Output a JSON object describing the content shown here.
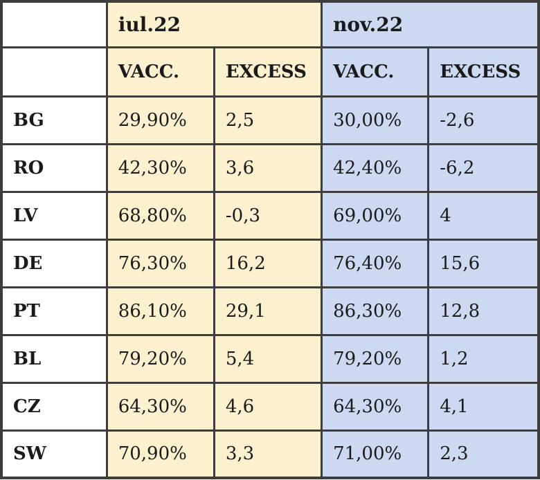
{
  "colors": {
    "jul_section_bg": "#fbf1cf",
    "nov_section_bg": "#ccd9f1",
    "border": "#3d3d3d"
  },
  "header": {
    "corner": "",
    "jul_label": "iul.22",
    "nov_label": "nov.22",
    "sub": {
      "jul_vacc": "VACC.",
      "jul_excess": "EXCESS",
      "nov_vacc": "VACC.",
      "nov_excess": "EXCESS"
    }
  },
  "rows": [
    {
      "label": "BG",
      "jul_vacc": "29,90%",
      "jul_excess": "2,5",
      "nov_vacc": "30,00%",
      "nov_excess": "-2,6"
    },
    {
      "label": "RO",
      "jul_vacc": "42,30%",
      "jul_excess": "3,6",
      "nov_vacc": "42,40%",
      "nov_excess": "-6,2"
    },
    {
      "label": "LV",
      "jul_vacc": "68,80%",
      "jul_excess": "-0,3",
      "nov_vacc": "69,00%",
      "nov_excess": "4"
    },
    {
      "label": "DE",
      "jul_vacc": "76,30%",
      "jul_excess": "16,2",
      "nov_vacc": "76,40%",
      "nov_excess": "15,6"
    },
    {
      "label": "PT",
      "jul_vacc": "86,10%",
      "jul_excess": "29,1",
      "nov_vacc": "86,30%",
      "nov_excess": "12,8"
    },
    {
      "label": "BL",
      "jul_vacc": "79,20%",
      "jul_excess": "5,4",
      "nov_vacc": "79,20%",
      "nov_excess": "1,2"
    },
    {
      "label": "CZ",
      "jul_vacc": "64,30%",
      "jul_excess": "4,6",
      "nov_vacc": "64,30%",
      "nov_excess": "4,1"
    },
    {
      "label": "SW",
      "jul_vacc": "70,90%",
      "jul_excess": "3,3",
      "nov_vacc": "71,00%",
      "nov_excess": "2,3"
    }
  ],
  "chart_data": {
    "type": "table",
    "title": "",
    "column_groups": [
      "",
      "iul.22",
      "iul.22",
      "nov.22",
      "nov.22"
    ],
    "columns": [
      "",
      "VACC.",
      "EXCESS",
      "VACC.",
      "EXCESS"
    ],
    "rows": [
      [
        "BG",
        "29,90%",
        "2,5",
        "30,00%",
        "-2,6"
      ],
      [
        "RO",
        "42,30%",
        "3,6",
        "42,40%",
        "-6,2"
      ],
      [
        "LV",
        "68,80%",
        "-0,3",
        "69,00%",
        "4"
      ],
      [
        "DE",
        "76,30%",
        "16,2",
        "76,40%",
        "15,6"
      ],
      [
        "PT",
        "86,10%",
        "29,1",
        "86,30%",
        "12,8"
      ],
      [
        "BL",
        "79,20%",
        "5,4",
        "79,20%",
        "1,2"
      ],
      [
        "CZ",
        "64,30%",
        "4,6",
        "64,30%",
        "4,1"
      ],
      [
        "SW",
        "70,90%",
        "3,3",
        "71,00%",
        "2,3"
      ]
    ]
  }
}
